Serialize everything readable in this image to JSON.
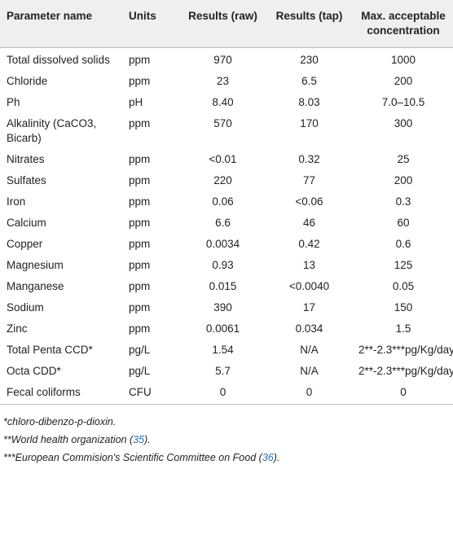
{
  "table": {
    "header": [
      "Parameter name",
      "Units",
      "Results (raw)",
      "Results (tap)",
      "Max. acceptable concentration"
    ],
    "rows": [
      [
        "Total dissolved solids",
        "ppm",
        "970",
        "230",
        "1000"
      ],
      [
        "Chloride",
        "ppm",
        "23",
        "6.5",
        "200"
      ],
      [
        "Ph",
        "pH",
        "8.40",
        "8.03",
        "7.0–10.5"
      ],
      [
        "Alkalinity (CaCO3, Bicarb)",
        "ppm",
        "570",
        "170",
        "300"
      ],
      [
        "Nitrates",
        "ppm",
        "<0.01",
        "0.32",
        "25"
      ],
      [
        "Sulfates",
        "ppm",
        "220",
        "77",
        "200"
      ],
      [
        "Iron",
        "ppm",
        "0.06",
        "<0.06",
        "0.3"
      ],
      [
        "Calcium",
        "ppm",
        "6.6",
        "46",
        "60"
      ],
      [
        "Copper",
        "ppm",
        "0.0034",
        "0.42",
        "0.6"
      ],
      [
        "Magnesium",
        "ppm",
        "0.93",
        "13",
        "125"
      ],
      [
        "Manganese",
        "ppm",
        "0.015",
        "<0.0040",
        "0.05"
      ],
      [
        "Sodium",
        "ppm",
        "390",
        "17",
        "150"
      ],
      [
        "Zinc",
        "ppm",
        "0.0061",
        "0.034",
        "1.5"
      ],
      [
        "Total Penta CCD*",
        "pg/L",
        "1.54",
        "N/A",
        "2**-2.3***pg/Kg/day"
      ],
      [
        "Octa CDD*",
        "pg/L",
        "5.7",
        "N/A",
        "2**-2.3***pg/Kg/day"
      ],
      [
        "Fecal coliforms",
        "CFU",
        "0",
        "0",
        "0"
      ]
    ]
  },
  "footnotes": [
    {
      "text": "*chloro-dibenzo-p-dioxin."
    },
    {
      "prefix": "**World health organization (",
      "ref": "35",
      "suffix": ")."
    },
    {
      "prefix": "***European Commision's Scientific Committee on Food (",
      "ref": "36",
      "suffix": ")."
    }
  ]
}
